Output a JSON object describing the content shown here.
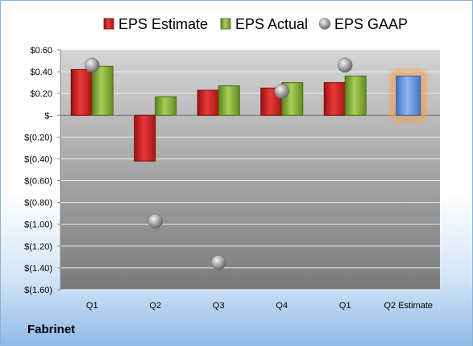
{
  "company": "Fabrinet",
  "chart_data": {
    "type": "bar",
    "categories": [
      "Q1",
      "Q2",
      "Q3",
      "Q4",
      "Q1",
      "Q2 Estimate"
    ],
    "series": [
      {
        "name": "EPS Estimate",
        "values": [
          0.42,
          -0.42,
          0.23,
          0.25,
          0.3,
          null
        ],
        "color": "#cc1f1f"
      },
      {
        "name": "EPS Actual",
        "values": [
          0.45,
          0.17,
          0.27,
          0.3,
          0.36,
          null
        ],
        "color": "#7aa62e"
      },
      {
        "name": "EPS GAAP",
        "values": [
          0.46,
          -0.97,
          -1.35,
          0.22,
          0.46,
          null
        ],
        "color": "#b8b8b8",
        "kind": "marker"
      }
    ],
    "estimate_bar": {
      "category": "Q2 Estimate",
      "value": 0.36,
      "color": "#5b8fd6",
      "glow": "#f4a04a"
    },
    "yticks": [
      0.6,
      0.4,
      0.2,
      0,
      -0.2,
      -0.4,
      -0.6,
      -0.8,
      -1.0,
      -1.2,
      -1.4,
      -1.6
    ],
    "ytick_labels": [
      "$0.60",
      "$0.40",
      "$0.20",
      "$-",
      "$(0.20)",
      "$(0.40)",
      "$(0.60)",
      "$(0.80)",
      "$(1.00)",
      "$(1.20)",
      "$(1.40)",
      "$(1.60)"
    ],
    "ylim": [
      -1.6,
      0.6
    ],
    "legend": [
      "EPS Estimate",
      "EPS Actual",
      "EPS GAAP"
    ],
    "legend_position": "top",
    "grid": true
  }
}
